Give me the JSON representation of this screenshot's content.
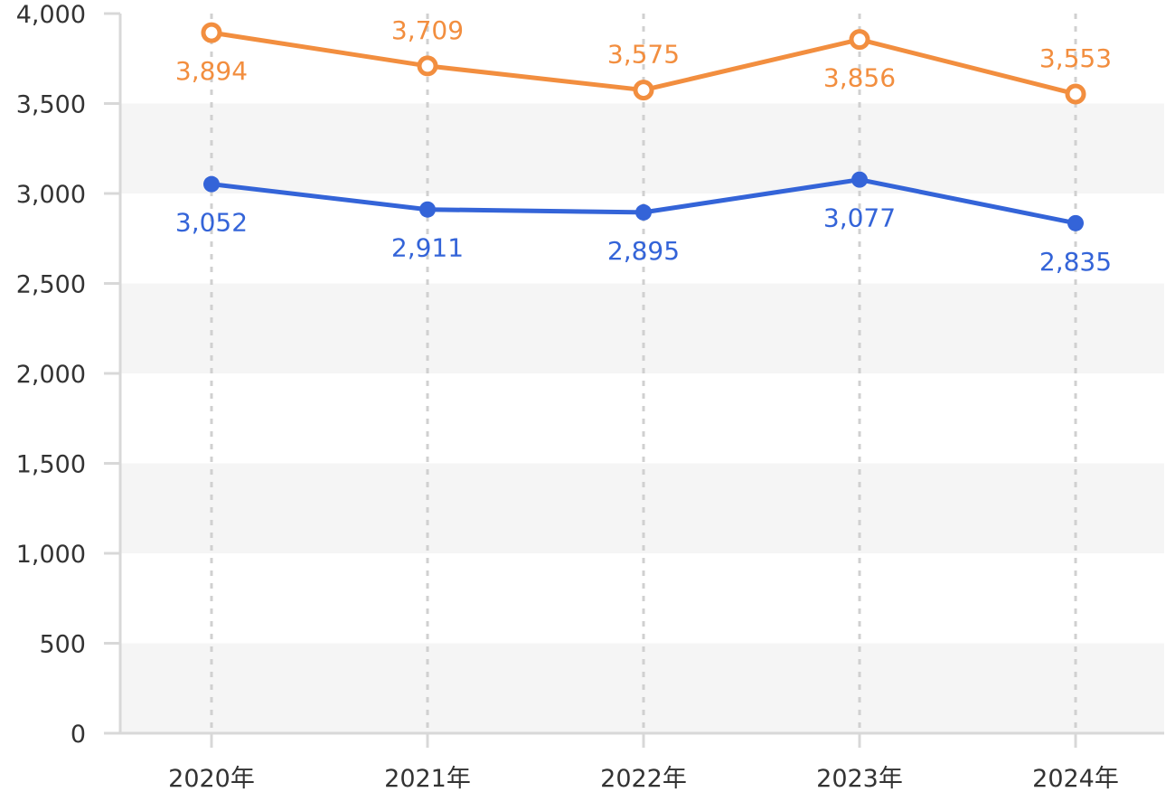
{
  "chart_data": {
    "type": "line",
    "categories": [
      "2020年",
      "2021年",
      "2022年",
      "2023年",
      "2024年"
    ],
    "series": [
      {
        "values": [
          3894,
          3709,
          3575,
          3856,
          3553
        ],
        "labels": [
          "3,894",
          "3,709",
          "3,575",
          "3,856",
          "3,553"
        ],
        "color": "#f28e3f",
        "marker": "hollow-circle"
      },
      {
        "values": [
          3052,
          2911,
          2895,
          3077,
          2835
        ],
        "labels": [
          "3,052",
          "2,911",
          "2,895",
          "3,077",
          "2,835"
        ],
        "color": "#3464d8",
        "marker": "filled-circle"
      }
    ],
    "yticks": [
      0,
      500,
      1000,
      1500,
      2000,
      2500,
      3000,
      3500,
      4000
    ],
    "ytick_labels": [
      "0",
      "500",
      "1,000",
      "1,500",
      "2,000",
      "2,500",
      "3,000",
      "3,500",
      "4,000"
    ],
    "ylim": [
      0,
      4000
    ],
    "grid": "alternating horizontal bands with dashed vertical lines at categories",
    "band_color": "#f5f5f5",
    "axis_color": "#d8d8d8",
    "title": "",
    "xlabel": "",
    "ylabel": ""
  }
}
